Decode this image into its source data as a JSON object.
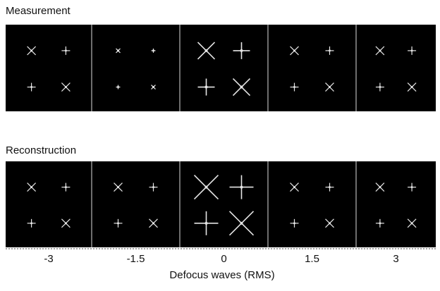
{
  "rows": [
    {
      "label": "Measurement"
    },
    {
      "label": "Reconstruction"
    }
  ],
  "x_axis": {
    "label": "Defocus waves (RMS)",
    "ticks": [
      "-3",
      "-1.5",
      "0",
      "1.5",
      "3"
    ]
  }
}
